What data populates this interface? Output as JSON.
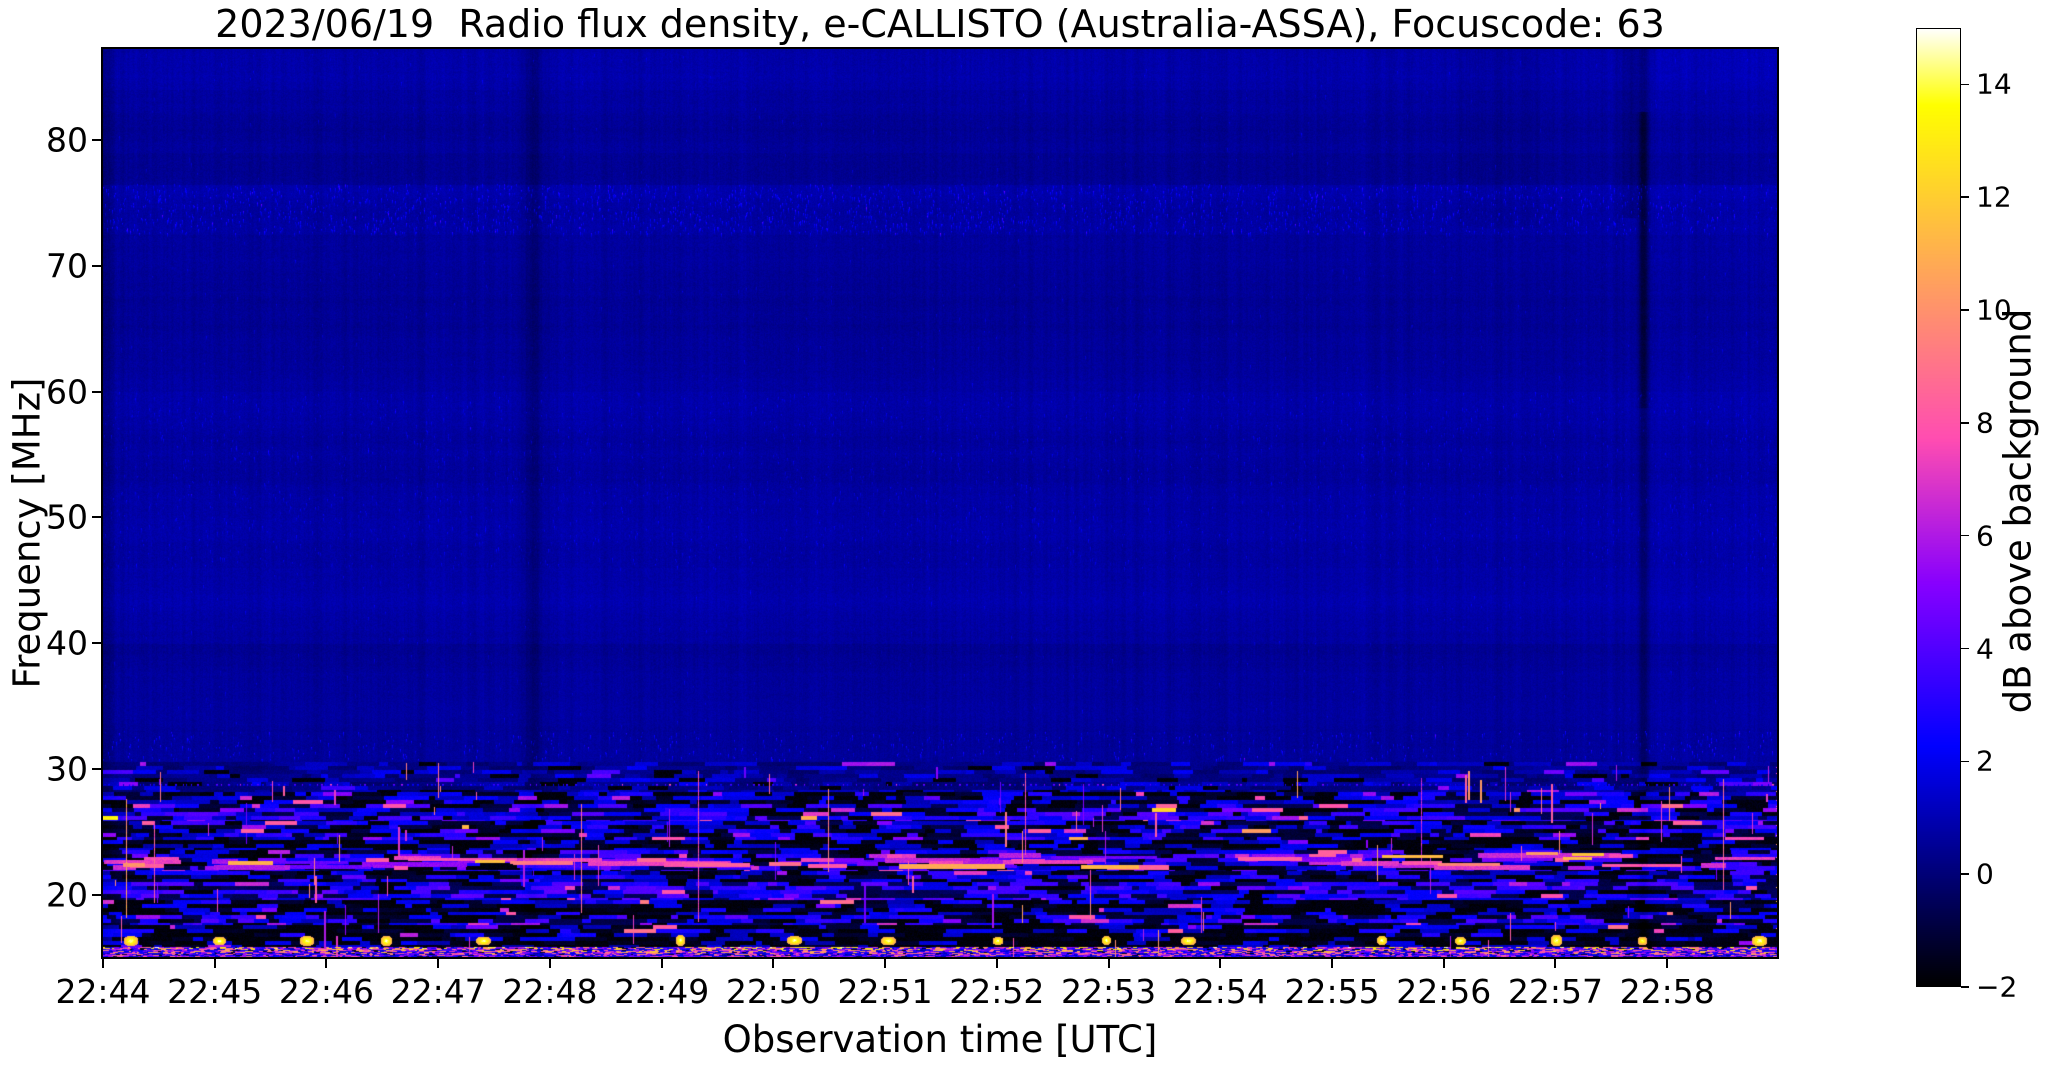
{
  "title": "2023/06/19  Radio flux density, e-CALLISTO (Australia-ASSA), Focuscode: 63",
  "x_axis": {
    "label": "Observation time [UTC]",
    "ticks": [
      "22:44",
      "22:45",
      "22:46",
      "22:47",
      "22:48",
      "22:49",
      "22:50",
      "22:51",
      "22:52",
      "22:53",
      "22:54",
      "22:55",
      "22:56",
      "22:57",
      "22:58"
    ]
  },
  "y_axis": {
    "label": "Frequency [MHz]",
    "ticks": [
      "80",
      "70",
      "60",
      "50",
      "40",
      "30",
      "20"
    ],
    "tick_values": [
      80,
      70,
      60,
      50,
      40,
      30,
      20
    ]
  },
  "colorbar": {
    "label": "dB above background",
    "ticks": [
      "14",
      "12",
      "10",
      "8",
      "6",
      "4",
      "2",
      "0",
      "−2"
    ],
    "tick_values": [
      14,
      12,
      10,
      8,
      6,
      4,
      2,
      0,
      -2
    ],
    "vmin": -2,
    "vmax": 15
  },
  "chart_data": {
    "type": "heatmap",
    "subtype": "solar-radio-spectrogram",
    "title": "2023/06/19  Radio flux density, e-CALLISTO (Australia-ASSA), Focuscode: 63",
    "xlabel": "Observation time [UTC]",
    "ylabel": "Frequency [MHz]",
    "x_tick_labels": [
      "22:44",
      "22:45",
      "22:46",
      "22:47",
      "22:48",
      "22:49",
      "22:50",
      "22:51",
      "22:52",
      "22:53",
      "22:54",
      "22:55",
      "22:56",
      "22:57",
      "22:58"
    ],
    "x_range_utc": [
      "22:44:00",
      "22:59:00"
    ],
    "y_tick_values_mhz": [
      80,
      70,
      60,
      50,
      40,
      30,
      20
    ],
    "y_range_mhz": [
      15.0,
      87.3
    ],
    "grid": false,
    "color_scale": {
      "label": "dB above background",
      "vmin": -2,
      "vmax": 15,
      "tick_values": [
        14,
        12,
        10,
        8,
        6,
        4,
        2,
        0,
        -2
      ],
      "colormap": "gnuplot2-style: black → blue → violet → magenta → orange → yellow → white"
    },
    "content_summary": {
      "background_level_db": 0.5,
      "features": [
        "Quiet featureless dark-blue background (~0–1 dB) above ~30 MHz; no solar radio burst visible",
        "Faint horizontal enhancement bands with fine blue speckle dashes near ~73–77 MHz and ~46–60 MHz",
        "Dotted horizontal RFI line at ~28.8 MHz across the whole 15 minutes",
        "Strong broadband terrestrial RFI below ~28 MHz: dash speckles ranging from −2 up to ~12 dB",
        "Persistent horizontal RFI streaks around 22–23.5 MHz at ~4–10 dB",
        "Row of saturated RFI bursts (~14–15 dB, white/yellow blobs) near ~16.5 MHz roughly every 45–90 s",
        "Continuous multicoloured RFI speckle line at ~15.3 MHz along the bottom edge",
        "Narrow dark vertical dropout lanes near 22:47:50 and 22:57:40, darkest between ~55 and 80 MHz",
        "Slightly brighter blue background after ~22:58 and a dark column at the very left edge"
      ]
    }
  }
}
